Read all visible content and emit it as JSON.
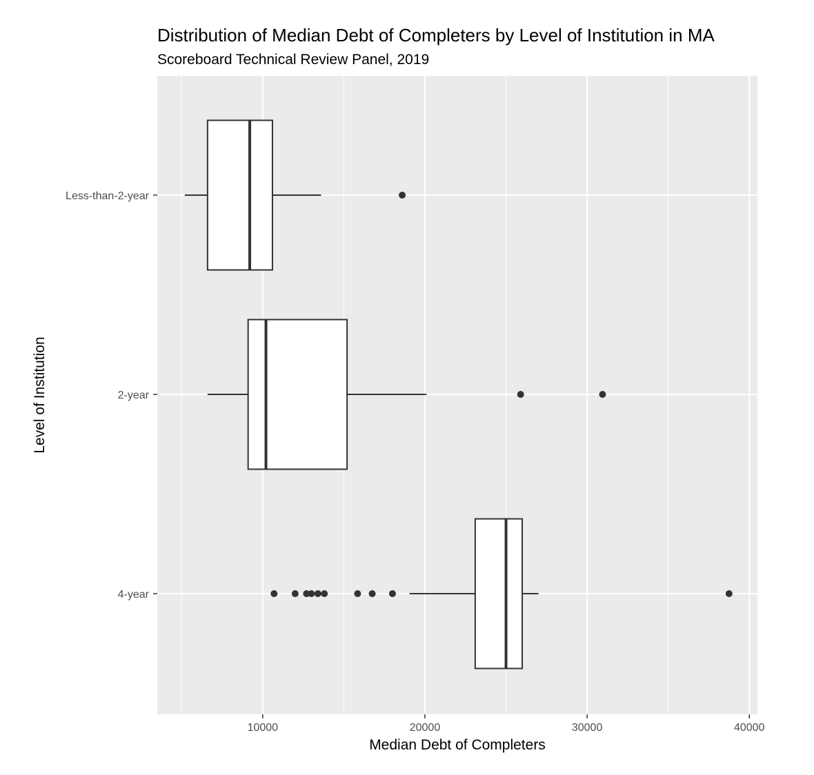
{
  "chart_data": {
    "type": "boxplot",
    "orientation": "horizontal",
    "title": "Distribution of Median Debt of Completers by Level of Institution in MA",
    "subtitle": "Scoreboard Technical Review Panel, 2019",
    "xlabel": "Median Debt of Completers",
    "ylabel": "Level of Institution",
    "xlim": [
      3500,
      40500
    ],
    "x_ticks": [
      10000,
      20000,
      30000,
      40000
    ],
    "x_tick_labels": [
      "10000",
      "20000",
      "30000",
      "40000"
    ],
    "categories": [
      "Less-than-2-year",
      "2-year",
      "4-year"
    ],
    "boxes": [
      {
        "category": "Less-than-2-year",
        "whisker_low": 5200,
        "q1": 6600,
        "median": 9200,
        "q3": 10600,
        "whisker_high": 13600,
        "outliers": [
          18600
        ]
      },
      {
        "category": "2-year",
        "whisker_low": 6600,
        "q1": 9100,
        "median": 10200,
        "q3": 15200,
        "whisker_high": 20100,
        "outliers": [
          25900,
          30950
        ]
      },
      {
        "category": "4-year",
        "whisker_low": 19050,
        "q1": 23100,
        "median": 25000,
        "q3": 26000,
        "whisker_high": 27000,
        "outliers": [
          10700,
          12000,
          12700,
          13000,
          13400,
          13800,
          15850,
          16750,
          18000,
          38750
        ]
      }
    ],
    "grid": true,
    "colors": {
      "panel": "#ebebeb",
      "gridline": "#ffffff",
      "box_fill": "#ffffff",
      "stroke": "#333333"
    }
  }
}
